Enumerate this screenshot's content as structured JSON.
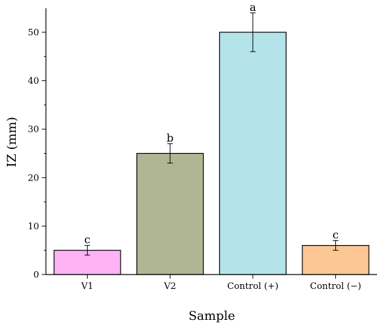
{
  "chart_data": {
    "type": "bar",
    "title": "",
    "xlabel": "Sample",
    "ylabel": "IZ (mm)",
    "categories": [
      "V1",
      "V2",
      "Control (+)",
      "Control (−)"
    ],
    "values": [
      5,
      25,
      50,
      6
    ],
    "errors": [
      1,
      2,
      4,
      1
    ],
    "significance_labels": [
      "c",
      "b",
      "a",
      "c"
    ],
    "bar_colors": [
      "#ffb3f5",
      "#b0b593",
      "#b5e3ea",
      "#fcc795"
    ],
    "ylim": [
      0,
      55
    ],
    "yticks": [
      0,
      10,
      20,
      30,
      40,
      50
    ],
    "y_minor_step": 5,
    "grid": false,
    "legend": "none"
  }
}
